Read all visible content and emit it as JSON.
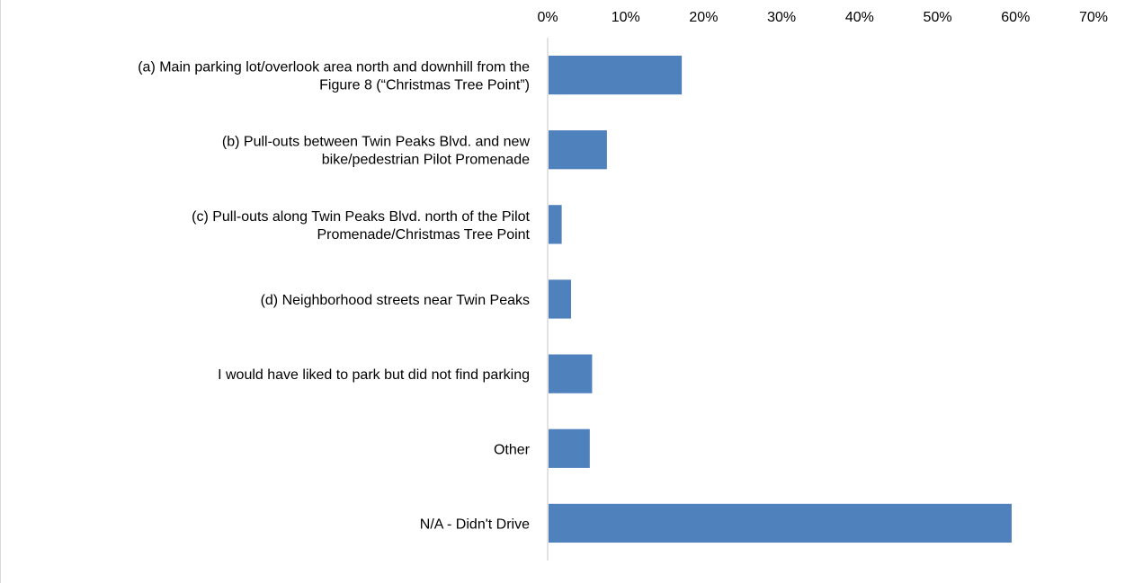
{
  "chart_data": {
    "type": "bar",
    "orientation": "horizontal",
    "categories": [
      "(a) Main parking lot/overlook area north and downhill from the Figure 8 (“Christmas Tree Point”)",
      "(b) Pull-outs between Twin Peaks Blvd. and new bike/pedestrian Pilot Promenade",
      "(c) Pull-outs along Twin Peaks Blvd. north of the Pilot Promenade/Christmas Tree Point",
      "(d) Neighborhood streets near Twin Peaks",
      "I would have liked to park but did not find parking",
      "Other",
      "N/A - Didn't Drive"
    ],
    "category_lines": [
      [
        "(a) Main parking lot/overlook area north and downhill from the",
        "Figure 8 (“Christmas Tree Point”)"
      ],
      [
        "(b) Pull-outs between Twin Peaks Blvd. and new",
        "bike/pedestrian Pilot Promenade"
      ],
      [
        "(c) Pull-outs along Twin Peaks Blvd. north of the Pilot",
        "Promenade/Christmas Tree Point"
      ],
      [
        "(d) Neighborhood streets near Twin Peaks"
      ],
      [
        "I would have liked to park but did not find parking"
      ],
      [
        "Other"
      ],
      [
        "N/A - Didn't Drive"
      ]
    ],
    "values": [
      17.2,
      7.6,
      1.8,
      3.0,
      5.7,
      5.4,
      59.5
    ],
    "value_unit": "%",
    "xlim": [
      0,
      70
    ],
    "x_ticks": [
      "0%",
      "10%",
      "20%",
      "30%",
      "40%",
      "50%",
      "60%",
      "70%"
    ],
    "x_axis_position": "top",
    "grid": false,
    "legend": "none",
    "colors": {
      "bar": "#4f81bd",
      "axis": "#d9d9d9",
      "text": "#000000"
    },
    "title": "",
    "xlabel": "",
    "ylabel": ""
  }
}
